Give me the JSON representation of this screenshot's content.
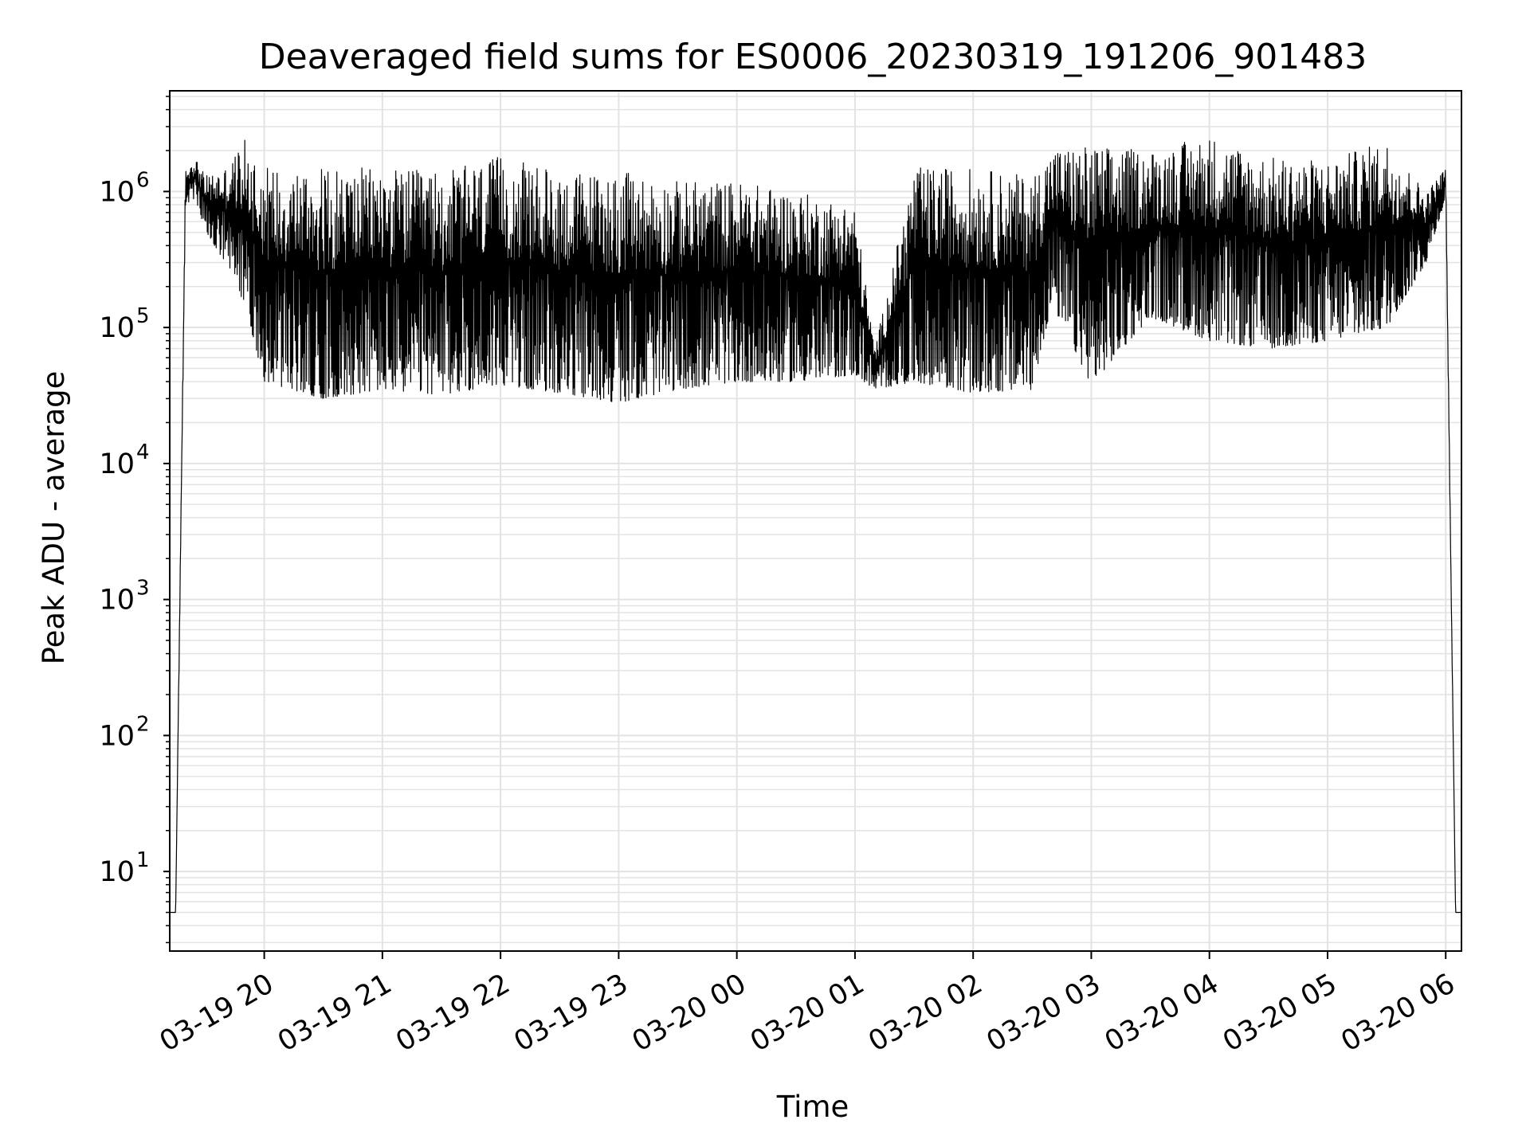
{
  "chart_data": {
    "type": "line",
    "title": "Deaveraged field sums for ES0006_20230319_191206_901483",
    "xlabel": "Time",
    "ylabel": "Peak ADU - average",
    "x_start": "2023-03-19T19:12:06",
    "x_end": "2023-03-20T06:08:00",
    "xlim": [
      "2023-03-19T19:12:00",
      "2023-03-20T06:08:00"
    ],
    "ylim": [
      2.6,
      5500000
    ],
    "yscale": "log",
    "grid": true,
    "line_color": "#000000",
    "grid_color": "#e3e3e3",
    "x_ticks": [
      {
        "value": "2023-03-19T20:00",
        "label": "03-19 20"
      },
      {
        "value": "2023-03-19T21:00",
        "label": "03-19 21"
      },
      {
        "value": "2023-03-19T22:00",
        "label": "03-19 22"
      },
      {
        "value": "2023-03-19T23:00",
        "label": "03-19 23"
      },
      {
        "value": "2023-03-20T00:00",
        "label": "03-20 00"
      },
      {
        "value": "2023-03-20T01:00",
        "label": "03-20 01"
      },
      {
        "value": "2023-03-20T02:00",
        "label": "03-20 02"
      },
      {
        "value": "2023-03-20T03:00",
        "label": "03-20 03"
      },
      {
        "value": "2023-03-20T04:00",
        "label": "03-20 04"
      },
      {
        "value": "2023-03-20T05:00",
        "label": "03-20 05"
      },
      {
        "value": "2023-03-20T06:00",
        "label": "03-20 06"
      }
    ],
    "y_ticks": [
      {
        "value": 10,
        "base": "10",
        "exp": "1"
      },
      {
        "value": 100,
        "base": "10",
        "exp": "2"
      },
      {
        "value": 1000,
        "base": "10",
        "exp": "3"
      },
      {
        "value": 10000,
        "base": "10",
        "exp": "4"
      },
      {
        "value": 100000,
        "base": "10",
        "exp": "5"
      },
      {
        "value": 1000000,
        "base": "10",
        "exp": "6"
      }
    ],
    "series": [
      {
        "envelope": [
          {
            "t": "2023-03-19T19:12",
            "low": 5,
            "high": 5
          },
          {
            "t": "2023-03-19T19:15",
            "low": 5,
            "high": 5
          },
          {
            "t": "2023-03-19T19:20",
            "low": 800000,
            "high": 1500000
          },
          {
            "t": "2023-03-19T19:25",
            "low": 900000,
            "high": 1800000
          },
          {
            "t": "2023-03-19T19:30",
            "low": 500000,
            "high": 1300000
          },
          {
            "t": "2023-03-19T19:40",
            "low": 300000,
            "high": 1500000
          },
          {
            "t": "2023-03-19T19:50",
            "low": 150000,
            "high": 2400000
          },
          {
            "t": "2023-03-19T20:00",
            "low": 40000,
            "high": 1600000
          },
          {
            "t": "2023-03-19T20:30",
            "low": 30000,
            "high": 1500000
          },
          {
            "t": "2023-03-19T21:00",
            "low": 35000,
            "high": 1500000
          },
          {
            "t": "2023-03-19T21:30",
            "low": 32000,
            "high": 1400000
          },
          {
            "t": "2023-03-19T22:00",
            "low": 38000,
            "high": 1800000
          },
          {
            "t": "2023-03-19T22:30",
            "low": 33000,
            "high": 1400000
          },
          {
            "t": "2023-03-19T23:00",
            "low": 28000,
            "high": 1400000
          },
          {
            "t": "2023-03-19T23:30",
            "low": 35000,
            "high": 1200000
          },
          {
            "t": "2023-03-20T00:00",
            "low": 40000,
            "high": 1200000
          },
          {
            "t": "2023-03-20T00:30",
            "low": 40000,
            "high": 1000000
          },
          {
            "t": "2023-03-20T01:00",
            "low": 45000,
            "high": 800000
          },
          {
            "t": "2023-03-20T01:10",
            "low": 35000,
            "high": 70000
          },
          {
            "t": "2023-03-20T01:30",
            "low": 40000,
            "high": 1500000
          },
          {
            "t": "2023-03-20T02:00",
            "low": 33000,
            "high": 1500000
          },
          {
            "t": "2023-03-20T02:30",
            "low": 35000,
            "high": 1300000
          },
          {
            "t": "2023-03-20T02:40",
            "low": 150000,
            "high": 2100000
          },
          {
            "t": "2023-03-20T03:00",
            "low": 38000,
            "high": 2200000
          },
          {
            "t": "2023-03-20T03:30",
            "low": 120000,
            "high": 2000000
          },
          {
            "t": "2023-03-20T04:00",
            "low": 80000,
            "high": 2600000
          },
          {
            "t": "2023-03-20T04:30",
            "low": 70000,
            "high": 1800000
          },
          {
            "t": "2023-03-20T05:00",
            "low": 80000,
            "high": 1700000
          },
          {
            "t": "2023-03-20T05:30",
            "low": 100000,
            "high": 2400000
          },
          {
            "t": "2023-03-20T05:50",
            "low": 300000,
            "high": 1000000
          },
          {
            "t": "2023-03-20T06:00",
            "low": 900000,
            "high": 1500000
          },
          {
            "t": "2023-03-20T06:05",
            "low": 5,
            "high": 5
          },
          {
            "t": "2023-03-20T06:08",
            "low": 5,
            "high": 5
          }
        ]
      }
    ]
  }
}
